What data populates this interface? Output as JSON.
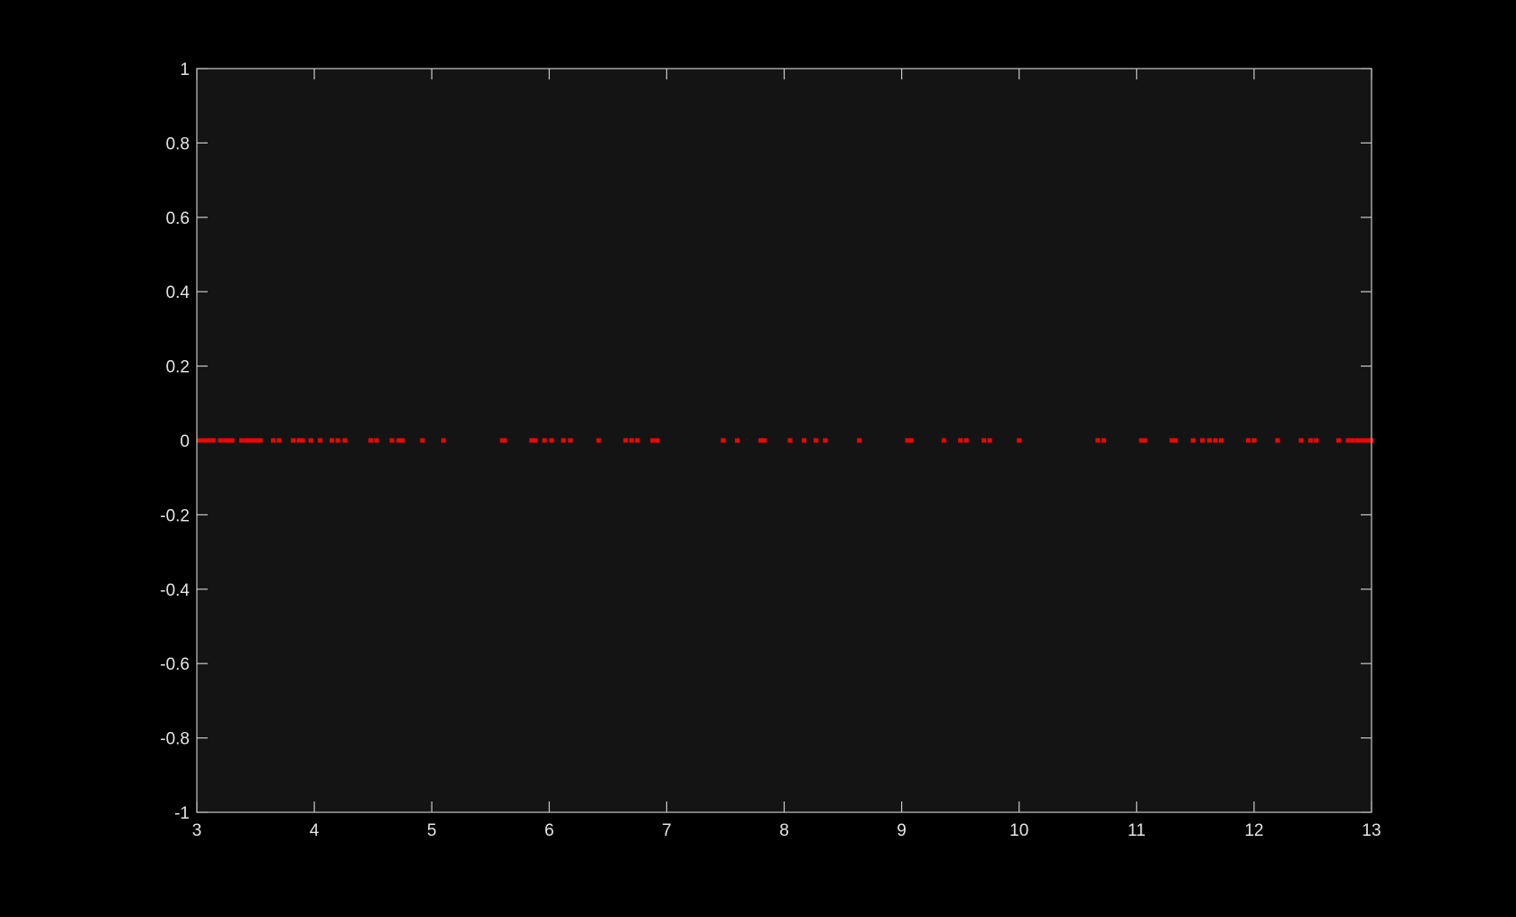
{
  "chart_data": {
    "type": "scatter",
    "title": "",
    "xlabel": "",
    "ylabel": "",
    "xlim": [
      3,
      13
    ],
    "ylim": [
      -1,
      1
    ],
    "xticks": [
      "3",
      "4",
      "5",
      "6",
      "7",
      "8",
      "9",
      "10",
      "11",
      "12",
      "13"
    ],
    "yticks": [
      "1",
      "0.8",
      "0.6",
      "0.4",
      "0.2",
      "0",
      "-0.2",
      "-0.4",
      "-0.6",
      "-0.8",
      "-1"
    ],
    "grid": false,
    "legend": "none",
    "series": [
      {
        "color": "#ff0000",
        "marker": "square",
        "x": [
          3.02,
          3.06,
          3.1,
          3.14,
          3.2,
          3.24,
          3.27,
          3.3,
          3.38,
          3.42,
          3.45,
          3.48,
          3.5,
          3.54,
          3.65,
          3.7,
          3.82,
          3.87,
          3.9,
          3.97,
          4.05,
          4.15,
          4.2,
          4.26,
          4.48,
          4.53,
          4.66,
          4.72,
          4.75,
          4.92,
          5.1,
          5.6,
          5.62,
          5.85,
          5.88,
          5.96,
          6.02,
          6.12,
          6.18,
          6.42,
          6.65,
          6.7,
          6.75,
          6.88,
          6.92,
          7.48,
          7.6,
          7.8,
          7.83,
          8.05,
          8.17,
          8.27,
          8.35,
          8.64,
          9.05,
          9.08,
          9.36,
          9.5,
          9.55,
          9.7,
          9.75,
          10.0,
          10.67,
          10.72,
          11.04,
          11.07,
          11.3,
          11.33,
          11.48,
          11.56,
          11.62,
          11.67,
          11.72,
          11.95,
          12.0,
          12.2,
          12.4,
          12.48,
          12.53,
          12.72,
          12.8,
          12.84,
          12.88,
          12.91,
          12.94,
          12.97,
          13.0
        ],
        "y": [
          0,
          0,
          0,
          0,
          0,
          0,
          0,
          0,
          0,
          0,
          0,
          0,
          0,
          0,
          0,
          0,
          0,
          0,
          0,
          0,
          0,
          0,
          0,
          0,
          0,
          0,
          0,
          0,
          0,
          0,
          0,
          0,
          0,
          0,
          0,
          0,
          0,
          0,
          0,
          0,
          0,
          0,
          0,
          0,
          0,
          0,
          0,
          0,
          0,
          0,
          0,
          0,
          0,
          0,
          0,
          0,
          0,
          0,
          0,
          0,
          0,
          0,
          0,
          0,
          0,
          0,
          0,
          0,
          0,
          0,
          0,
          0,
          0,
          0,
          0,
          0,
          0,
          0,
          0,
          0,
          0,
          0,
          0,
          0,
          0,
          0,
          0
        ]
      }
    ]
  },
  "colors": {
    "figure_background": "#000000",
    "axes_background": "#141414",
    "axes_color": "#c8c8c8",
    "marker_color": "#ff0000"
  }
}
